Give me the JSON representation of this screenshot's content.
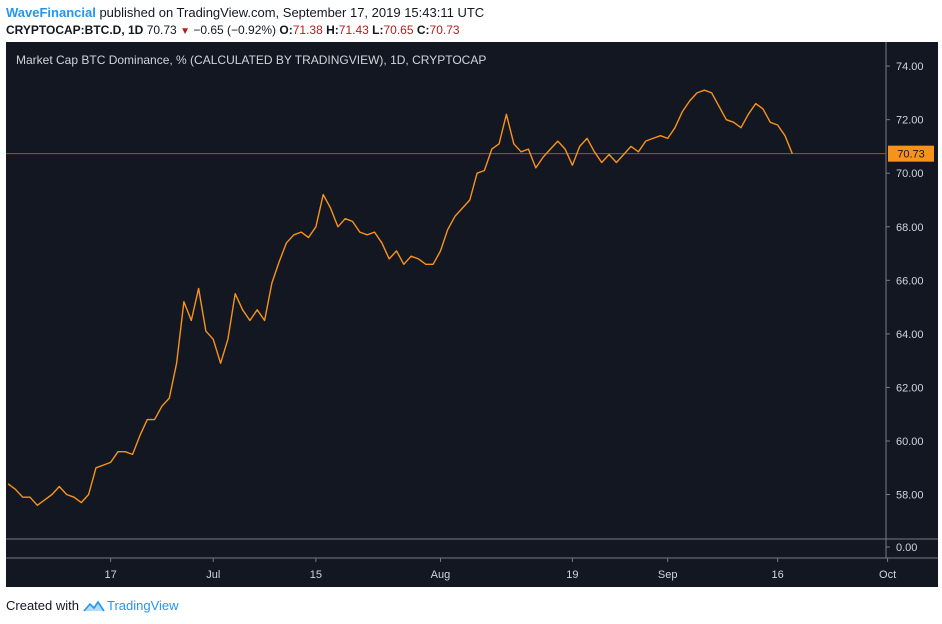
{
  "header": {
    "author": "WaveFinancial",
    "published_text": "published on TradingView.com, September 17, 2019 15:43:11 UTC"
  },
  "symbol_line": {
    "symbol": "CRYPTOCAP:BTC.D, 1D",
    "price": "70.73",
    "change": "−0.65 (−0.92%)",
    "o_label": "O:",
    "o_value": "71.38",
    "h_label": "H:",
    "h_value": "71.43",
    "l_label": "L:",
    "l_value": "70.65",
    "c_label": "C:",
    "c_value": "70.73"
  },
  "footer": {
    "created_with": "Created with",
    "brand": "TradingView"
  },
  "colors": {
    "background": "#131722",
    "line": "#f7931a",
    "label_bg": "#f7931a",
    "grid_text": "#d1d4dc",
    "down": "#b71c1c"
  },
  "chart_data": {
    "type": "line",
    "title": "Market Cap BTC Dominance, % (CALCULATED BY TRADINGVIEW), 1D, CRYPTOCAP",
    "ylim": [
      56.9,
      74.9
    ],
    "y_ticks": [
      "74.00",
      "72.00",
      "70.00",
      "68.00",
      "66.00",
      "64.00",
      "62.00",
      "60.00",
      "58.00"
    ],
    "y_tick_values": [
      74,
      72,
      70,
      68,
      66,
      64,
      62,
      60,
      58
    ],
    "lower_pane_tick": "0.00",
    "last_value": 70.73,
    "last_value_label": "70.73",
    "x_ticks": [
      {
        "label": "17",
        "date": "2019-06-17"
      },
      {
        "label": "Jul",
        "date": "2019-07-01"
      },
      {
        "label": "15",
        "date": "2019-07-15"
      },
      {
        "label": "Aug",
        "date": "2019-08-01"
      },
      {
        "label": "19",
        "date": "2019-08-19"
      },
      {
        "label": "Sep",
        "date": "2019-09-01"
      },
      {
        "label": "16",
        "date": "2019-09-16"
      },
      {
        "label": "Oct",
        "date": "2019-10-01"
      }
    ],
    "x_start": "2019-06-03",
    "series": [
      {
        "values": [
          [
            "2019-06-03",
            58.4
          ],
          [
            "2019-06-04",
            58.2
          ],
          [
            "2019-06-05",
            57.9
          ],
          [
            "2019-06-06",
            57.9
          ],
          [
            "2019-06-07",
            57.6
          ],
          [
            "2019-06-08",
            57.8
          ],
          [
            "2019-06-09",
            58.0
          ],
          [
            "2019-06-10",
            58.3
          ],
          [
            "2019-06-11",
            58.0
          ],
          [
            "2019-06-12",
            57.9
          ],
          [
            "2019-06-13",
            57.7
          ],
          [
            "2019-06-14",
            58.0
          ],
          [
            "2019-06-15",
            59.0
          ],
          [
            "2019-06-16",
            59.1
          ],
          [
            "2019-06-17",
            59.2
          ],
          [
            "2019-06-18",
            59.6
          ],
          [
            "2019-06-19",
            59.6
          ],
          [
            "2019-06-20",
            59.5
          ],
          [
            "2019-06-21",
            60.2
          ],
          [
            "2019-06-22",
            60.8
          ],
          [
            "2019-06-23",
            60.8
          ],
          [
            "2019-06-24",
            61.3
          ],
          [
            "2019-06-25",
            61.6
          ],
          [
            "2019-06-26",
            62.9
          ],
          [
            "2019-06-27",
            65.2
          ],
          [
            "2019-06-28",
            64.5
          ],
          [
            "2019-06-29",
            65.7
          ],
          [
            "2019-06-30",
            64.1
          ],
          [
            "2019-07-01",
            63.8
          ],
          [
            "2019-07-02",
            62.9
          ],
          [
            "2019-07-03",
            63.8
          ],
          [
            "2019-07-04",
            65.5
          ],
          [
            "2019-07-05",
            64.9
          ],
          [
            "2019-07-06",
            64.5
          ],
          [
            "2019-07-07",
            64.9
          ],
          [
            "2019-07-08",
            64.5
          ],
          [
            "2019-07-09",
            65.9
          ],
          [
            "2019-07-10",
            66.7
          ],
          [
            "2019-07-11",
            67.4
          ],
          [
            "2019-07-12",
            67.7
          ],
          [
            "2019-07-13",
            67.8
          ],
          [
            "2019-07-14",
            67.6
          ],
          [
            "2019-07-15",
            68.0
          ],
          [
            "2019-07-16",
            69.2
          ],
          [
            "2019-07-17",
            68.7
          ],
          [
            "2019-07-18",
            68.0
          ],
          [
            "2019-07-19",
            68.3
          ],
          [
            "2019-07-20",
            68.2
          ],
          [
            "2019-07-21",
            67.8
          ],
          [
            "2019-07-22",
            67.7
          ],
          [
            "2019-07-23",
            67.8
          ],
          [
            "2019-07-24",
            67.4
          ],
          [
            "2019-07-25",
            66.8
          ],
          [
            "2019-07-26",
            67.1
          ],
          [
            "2019-07-27",
            66.6
          ],
          [
            "2019-07-28",
            66.9
          ],
          [
            "2019-07-29",
            66.8
          ],
          [
            "2019-07-30",
            66.6
          ],
          [
            "2019-07-31",
            66.6
          ],
          [
            "2019-08-01",
            67.1
          ],
          [
            "2019-08-02",
            67.9
          ],
          [
            "2019-08-03",
            68.4
          ],
          [
            "2019-08-04",
            68.7
          ],
          [
            "2019-08-05",
            69.0
          ],
          [
            "2019-08-06",
            70.0
          ],
          [
            "2019-08-07",
            70.1
          ],
          [
            "2019-08-08",
            70.9
          ],
          [
            "2019-08-09",
            71.1
          ],
          [
            "2019-08-10",
            72.2
          ],
          [
            "2019-08-11",
            71.1
          ],
          [
            "2019-08-12",
            70.8
          ],
          [
            "2019-08-13",
            70.9
          ],
          [
            "2019-08-14",
            70.2
          ],
          [
            "2019-08-15",
            70.6
          ],
          [
            "2019-08-16",
            70.9
          ],
          [
            "2019-08-17",
            71.2
          ],
          [
            "2019-08-18",
            70.9
          ],
          [
            "2019-08-19",
            70.3
          ],
          [
            "2019-08-20",
            71.0
          ],
          [
            "2019-08-21",
            71.3
          ],
          [
            "2019-08-22",
            70.8
          ],
          [
            "2019-08-23",
            70.4
          ],
          [
            "2019-08-24",
            70.7
          ],
          [
            "2019-08-25",
            70.4
          ],
          [
            "2019-08-26",
            70.7
          ],
          [
            "2019-08-27",
            71.0
          ],
          [
            "2019-08-28",
            70.8
          ],
          [
            "2019-08-29",
            71.2
          ],
          [
            "2019-08-30",
            71.3
          ],
          [
            "2019-08-31",
            71.4
          ],
          [
            "2019-09-01",
            71.3
          ],
          [
            "2019-09-02",
            71.7
          ],
          [
            "2019-09-03",
            72.3
          ],
          [
            "2019-09-04",
            72.7
          ],
          [
            "2019-09-05",
            73.0
          ],
          [
            "2019-09-06",
            73.1
          ],
          [
            "2019-09-07",
            73.0
          ],
          [
            "2019-09-08",
            72.5
          ],
          [
            "2019-09-09",
            72.0
          ],
          [
            "2019-09-10",
            71.9
          ],
          [
            "2019-09-11",
            71.7
          ],
          [
            "2019-09-12",
            72.2
          ],
          [
            "2019-09-13",
            72.6
          ],
          [
            "2019-09-14",
            72.4
          ],
          [
            "2019-09-15",
            71.9
          ],
          [
            "2019-09-16",
            71.8
          ],
          [
            "2019-09-17",
            71.4
          ],
          [
            "2019-09-18",
            70.73
          ]
        ]
      }
    ],
    "grid": false,
    "legend": "none"
  }
}
